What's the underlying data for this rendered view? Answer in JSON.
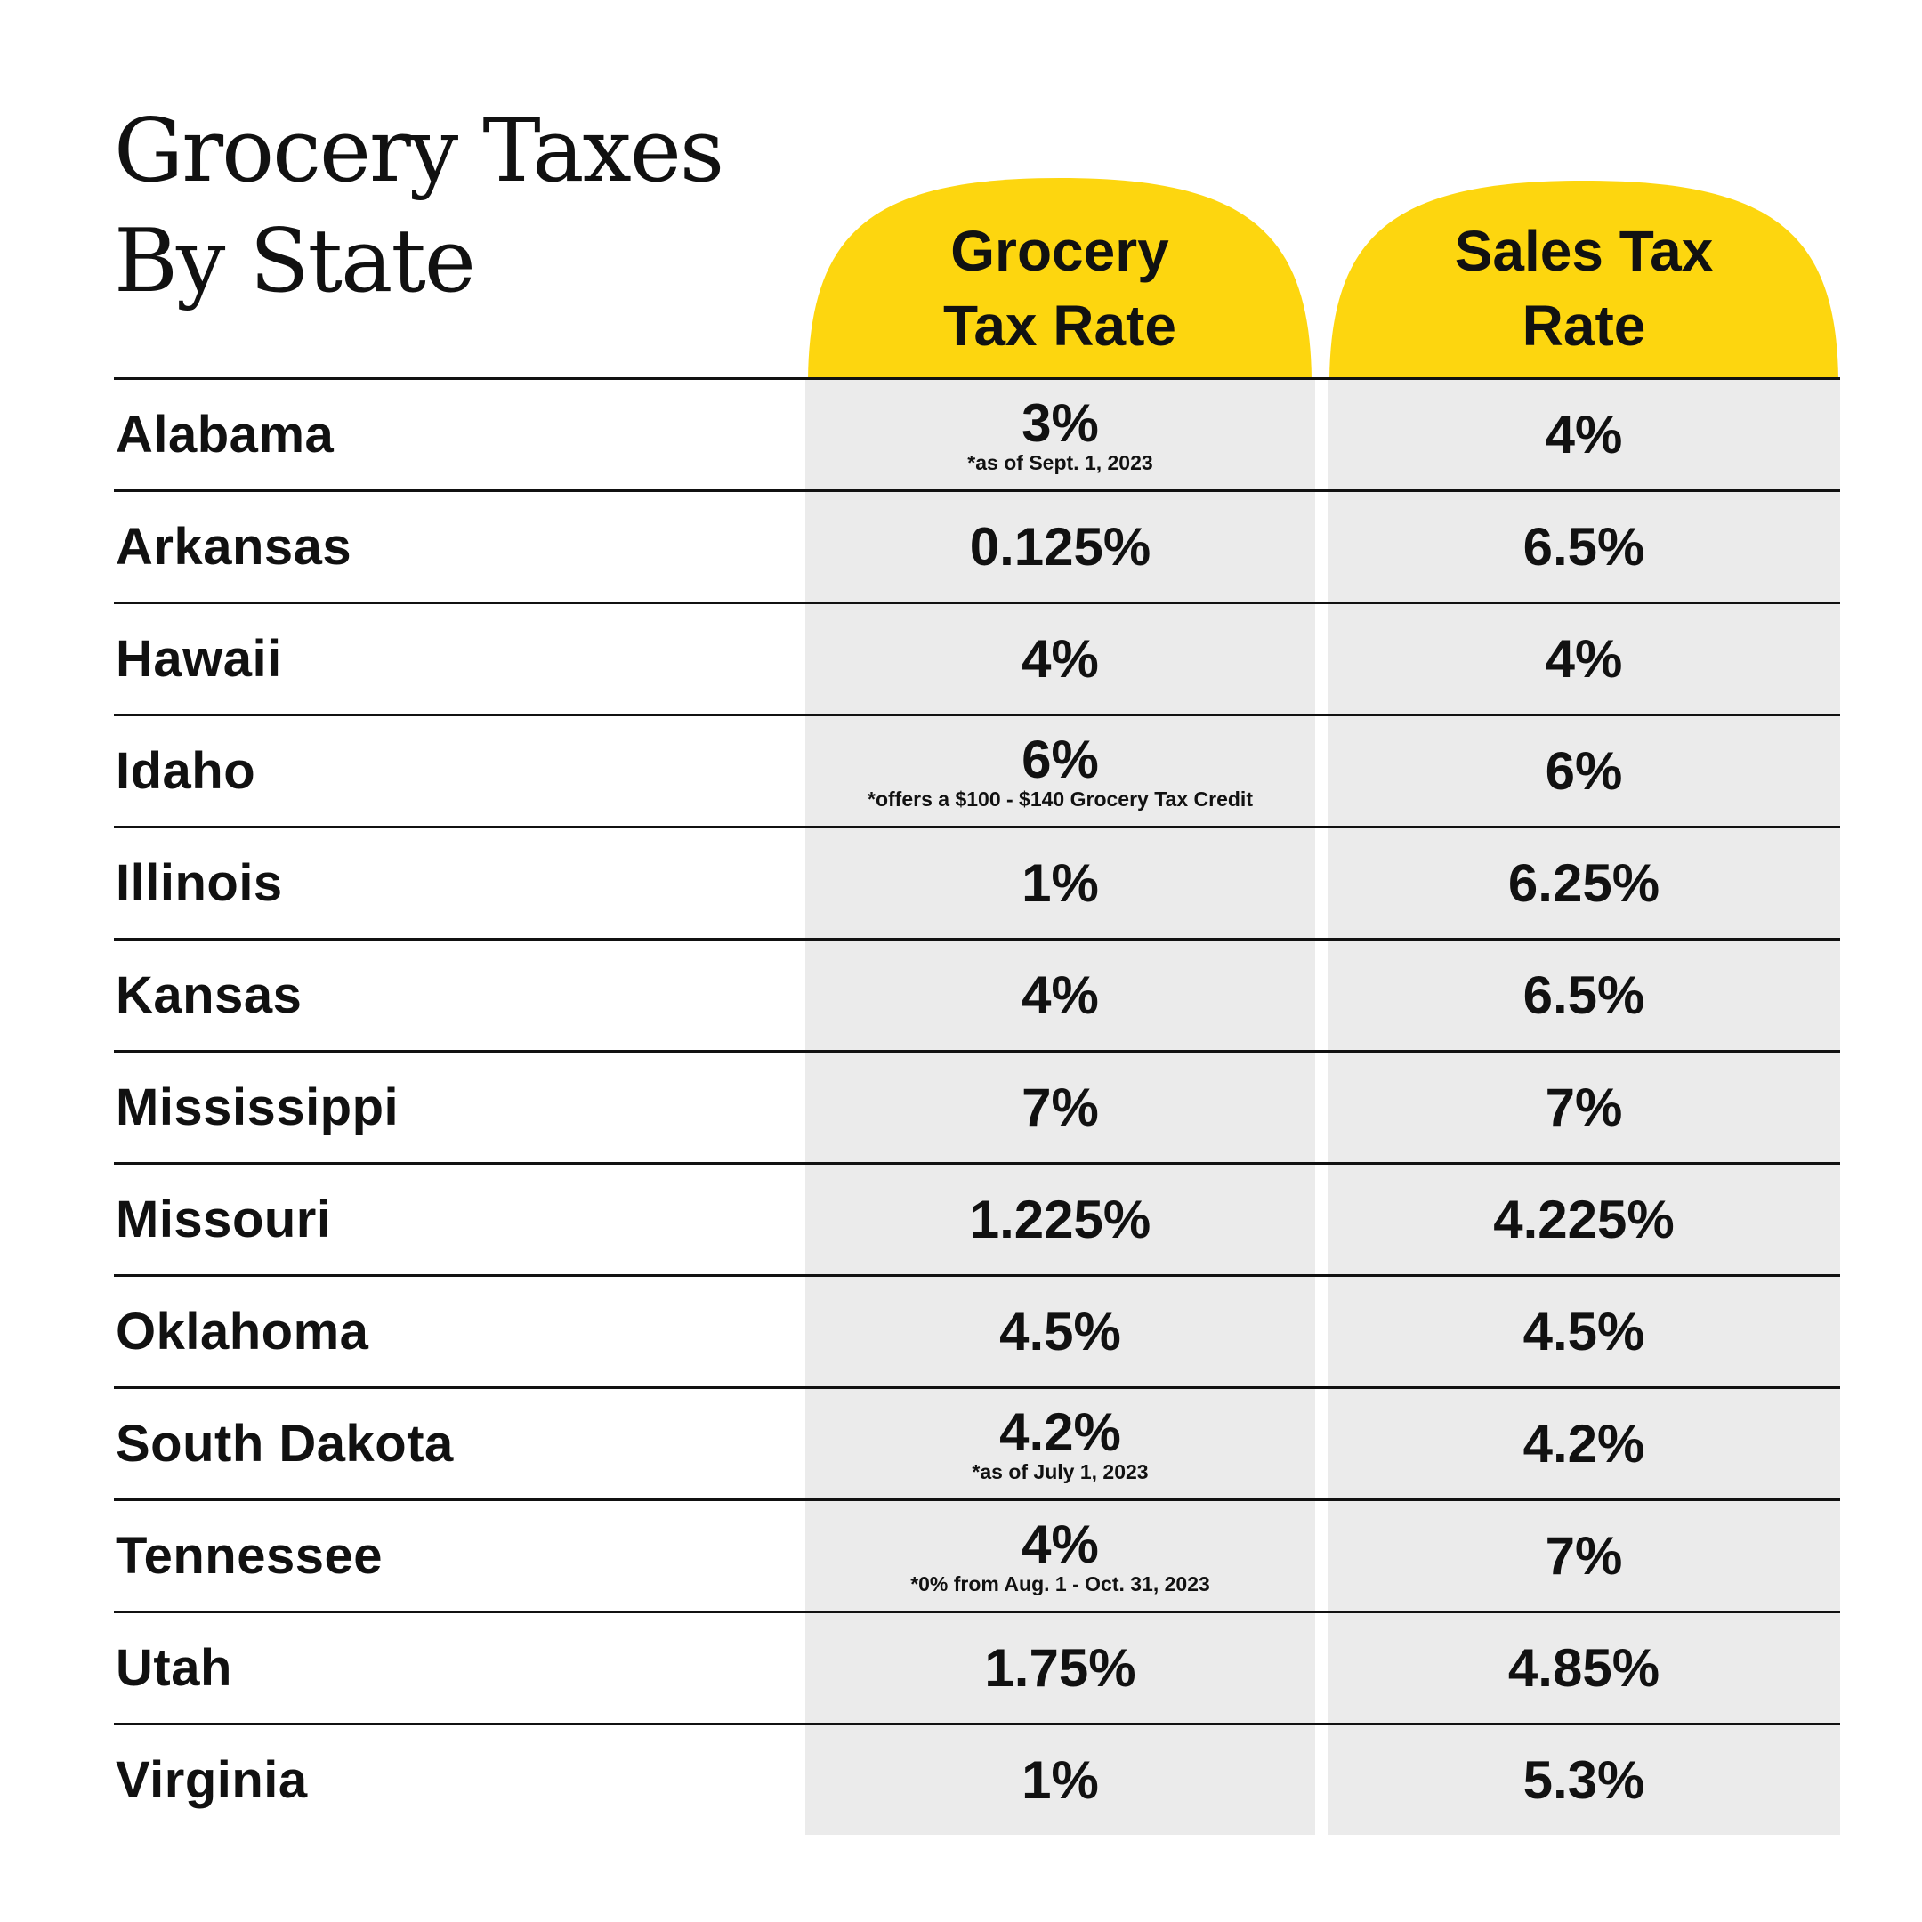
{
  "title": {
    "line1": "Grocery Taxes",
    "line2": "By State"
  },
  "colors": {
    "accent": "#fdd60f",
    "cell_bg": "#ebebeb",
    "text": "#111111"
  },
  "columns": [
    {
      "line1": "Grocery",
      "line2": "Tax Rate"
    },
    {
      "line1": "Sales Tax",
      "line2": "Rate"
    }
  ],
  "rows": [
    {
      "state": "Alabama",
      "grocery": "3%",
      "note": "*as of Sept. 1, 2023",
      "sales": "4%"
    },
    {
      "state": "Arkansas",
      "grocery": "0.125%",
      "note": "",
      "sales": "6.5%"
    },
    {
      "state": "Hawaii",
      "grocery": "4%",
      "note": "",
      "sales": "4%"
    },
    {
      "state": "Idaho",
      "grocery": "6%",
      "note": "*offers a $100 - $140 Grocery Tax Credit",
      "sales": "6%"
    },
    {
      "state": "Illinois",
      "grocery": "1%",
      "note": "",
      "sales": "6.25%"
    },
    {
      "state": "Kansas",
      "grocery": "4%",
      "note": "",
      "sales": "6.5%"
    },
    {
      "state": "Mississippi",
      "grocery": "7%",
      "note": "",
      "sales": "7%"
    },
    {
      "state": "Missouri",
      "grocery": "1.225%",
      "note": "",
      "sales": "4.225%"
    },
    {
      "state": "Oklahoma",
      "grocery": "4.5%",
      "note": "",
      "sales": "4.5%"
    },
    {
      "state": "South Dakota",
      "grocery": "4.2%",
      "note": "*as of July 1, 2023",
      "sales": "4.2%"
    },
    {
      "state": "Tennessee",
      "grocery": "4%",
      "note": "*0% from Aug. 1 - Oct. 31, 2023",
      "sales": "7%"
    },
    {
      "state": "Utah",
      "grocery": "1.75%",
      "note": "",
      "sales": "4.85%"
    },
    {
      "state": "Virginia",
      "grocery": "1%",
      "note": "",
      "sales": "5.3%"
    }
  ]
}
